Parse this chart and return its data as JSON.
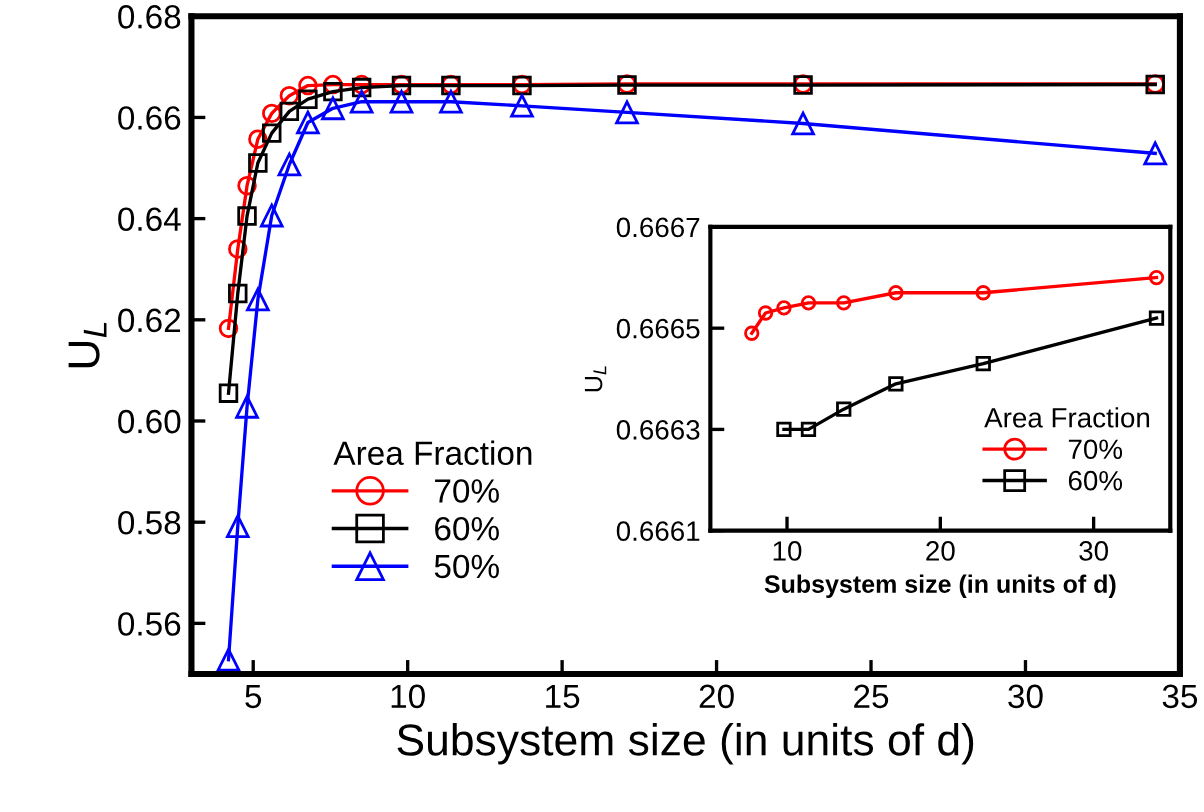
{
  "chart_data": [
    {
      "type": "line",
      "xlabel": "Subsystem size (in units of d)",
      "ylabel": "U$_{L}$",
      "legend_title": "Area Fraction",
      "legend": "bottom left",
      "grid": false,
      "xlim": [
        3,
        35
      ],
      "xticks": [
        5,
        10,
        15,
        20,
        25,
        30,
        35
      ],
      "ylim": [
        0.55,
        0.68
      ],
      "yticks": [
        0.56,
        0.58,
        {
          "value": 0.6,
          "label": "0.60"
        },
        0.62,
        0.64,
        0.66,
        0.68
      ],
      "x": [
        4.2,
        4.5,
        4.8,
        5.15,
        5.6,
        6.17,
        6.77,
        7.58,
        8.51,
        9.8,
        11.4,
        13.7,
        17.1,
        22.8,
        34.2
      ],
      "series": [
        {
          "name": "70%",
          "color": "#ff0000",
          "marker": "circle",
          "values": [
            0.6183,
            0.634,
            0.6465,
            0.6557,
            0.6608,
            0.6643,
            0.6663,
            0.6665,
            0.6665,
            0.6665,
            0.6665,
            0.6665,
            0.6666,
            0.6666,
            0.6666
          ]
        },
        {
          "name": "60%",
          "color": "#000000",
          "marker": "square",
          "values": [
            0.6055,
            0.6252,
            0.6405,
            0.651,
            0.6569,
            0.6612,
            0.6636,
            0.6651,
            0.6659,
            0.6663,
            0.6663,
            0.6663,
            0.6664,
            0.6664,
            0.6665
          ]
        },
        {
          "name": "50%",
          "color": "#0000ff",
          "marker": "triangle",
          "values": [
            0.5528,
            0.5792,
            0.6028,
            0.624,
            0.6406,
            0.6507,
            0.659,
            0.6618,
            0.6631,
            0.6631,
            0.6631,
            0.6623,
            0.661,
            0.6588,
            0.6529
          ]
        }
      ]
    },
    {
      "type": "line",
      "xlabel": "Subsystem size (in units of d)",
      "ylabel": "U$_{L}$",
      "legend_title": "Area Fraction",
      "legend": "bottom right",
      "grid": false,
      "xlim": [
        5,
        35
      ],
      "xticks": [
        10,
        20,
        30
      ],
      "ylim": [
        0.6661,
        0.6667
      ],
      "yticks": [
        0.6661,
        0.6663,
        0.6665,
        0.6667
      ],
      "series": [
        {
          "name": "70%",
          "color": "#ff0000",
          "marker": "circle",
          "x": [
            7.7,
            8.6,
            9.8,
            11.4,
            13.7,
            17.1,
            22.8,
            34.1
          ],
          "values": [
            0.66649,
            0.66653,
            0.66654,
            0.66655,
            0.66655,
            0.66657,
            0.66657,
            0.6666
          ]
        },
        {
          "name": "60%",
          "color": "#000000",
          "marker": "square",
          "x": [
            9.8,
            11.4,
            13.7,
            17.1,
            22.8,
            34.1
          ],
          "values": [
            0.6663,
            0.6663,
            0.66634,
            0.66639,
            0.66643,
            0.66652
          ]
        }
      ]
    }
  ]
}
